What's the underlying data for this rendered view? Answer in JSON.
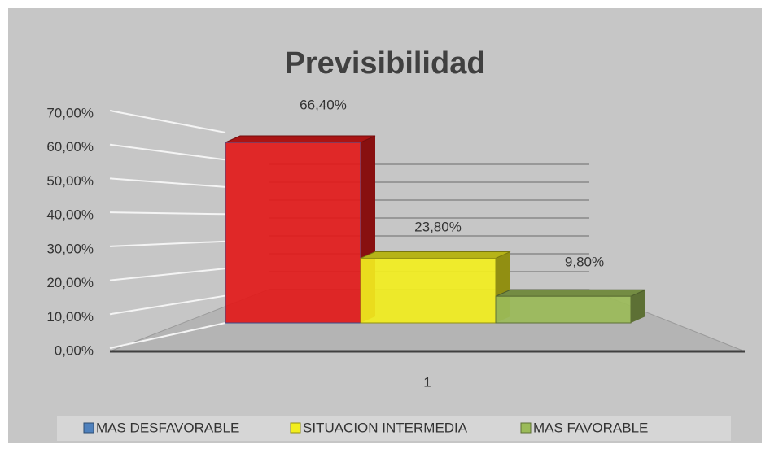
{
  "chart_data": {
    "type": "bar3d",
    "title": "Previsibilidad",
    "categories": [
      "1"
    ],
    "series": [
      {
        "name": "MAS DESFAVORABLE",
        "color": "#e21a1a",
        "legend_color": "#4f81bd",
        "values": [
          66.4
        ],
        "value_labels": [
          "66,40%"
        ]
      },
      {
        "name": "SITUACION INTERMEDIA",
        "color": "#f2ee1e",
        "legend_color": "#f2ee1e",
        "values": [
          23.8
        ],
        "value_labels": [
          "23,80%"
        ]
      },
      {
        "name": "MAS FAVORABLE",
        "color": "#9bbb59",
        "legend_color": "#9bbb59",
        "values": [
          9.8
        ],
        "value_labels": [
          "9,80%"
        ]
      }
    ],
    "ylim": [
      0,
      70
    ],
    "yticks": [
      {
        "value": 0,
        "label": "0,00%"
      },
      {
        "value": 10,
        "label": "10,00%"
      },
      {
        "value": 20,
        "label": "20,00%"
      },
      {
        "value": 30,
        "label": "30,00%"
      },
      {
        "value": 40,
        "label": "40,00%"
      },
      {
        "value": 50,
        "label": "50,00%"
      },
      {
        "value": 60,
        "label": "60,00%"
      },
      {
        "value": 70,
        "label": "70,00%"
      }
    ],
    "grid": true,
    "legend": "bottom"
  }
}
